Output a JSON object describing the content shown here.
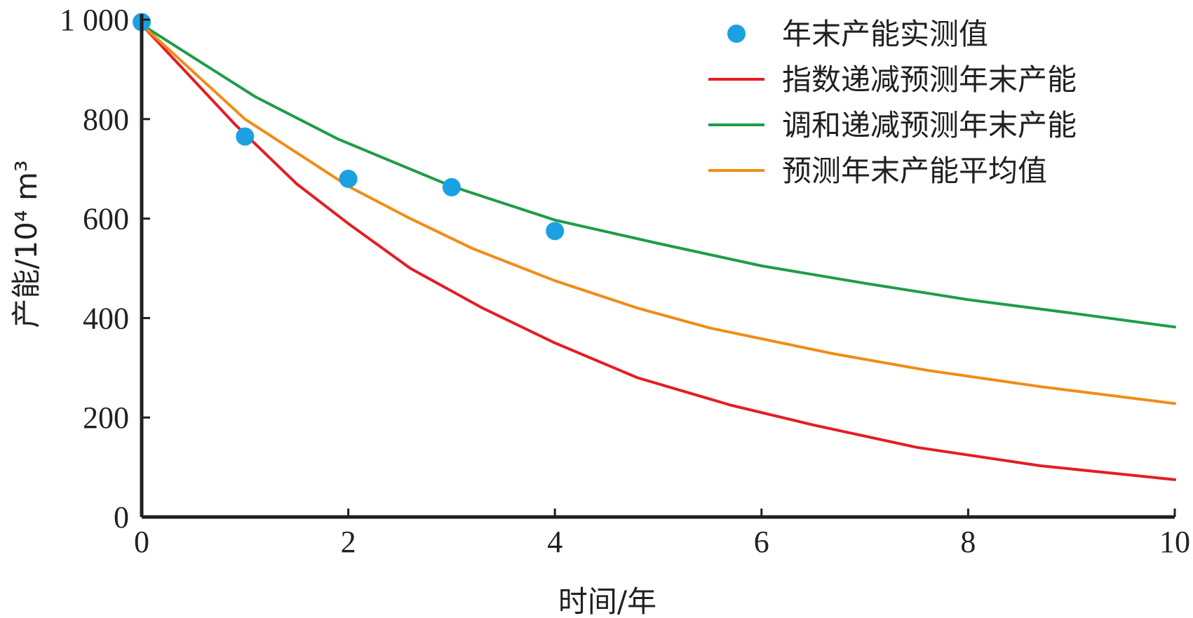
{
  "chart_data": {
    "type": "line",
    "xlabel": "时间/年",
    "ylabel": "产能/10⁴ m³",
    "xlim": [
      0,
      10
    ],
    "ylim": [
      0,
      1000
    ],
    "xticks": [
      "0",
      "2",
      "4",
      "6",
      "8",
      "10"
    ],
    "xtick_values": [
      0,
      2,
      4,
      6,
      8,
      10
    ],
    "yticks": [
      "0",
      "200",
      "400",
      "600",
      "800",
      "1 000"
    ],
    "ytick_values": [
      0,
      200,
      400,
      600,
      800,
      1000
    ],
    "grid": false,
    "legend_position": "top-right",
    "series": [
      {
        "name": "年末产能实测值",
        "kind": "scatter",
        "color": "#1ba1e2",
        "x": [
          0,
          1,
          2,
          3,
          4
        ],
        "y": [
          995,
          765,
          680,
          663,
          575
        ]
      },
      {
        "name": "指数递减预测年末产能",
        "kind": "line",
        "color": "#e31e24",
        "x": [
          0,
          0.9,
          1.5,
          2,
          2.6,
          3.3,
          4,
          4.8,
          5.7,
          6.5,
          7.5,
          8.7,
          10
        ],
        "y": [
          990,
          790,
          670,
          590,
          500,
          420,
          350,
          280,
          225,
          185,
          140,
          103,
          75
        ]
      },
      {
        "name": "调和递减预测年末产能",
        "kind": "line",
        "color": "#1f9c48",
        "x": [
          0,
          1.1,
          1.9,
          3,
          4,
          5,
          6,
          7,
          8,
          9,
          10
        ],
        "y": [
          990,
          845,
          760,
          665,
          597,
          550,
          505,
          470,
          437,
          410,
          382
        ]
      },
      {
        "name": "预测年末产能平均值",
        "kind": "line",
        "color": "#f18c17",
        "x": [
          0,
          1,
          2,
          2.6,
          3.2,
          4,
          4.8,
          5.5,
          6.7,
          7.6,
          8.7,
          10
        ],
        "y": [
          990,
          800,
          665,
          600,
          540,
          475,
          420,
          380,
          328,
          295,
          262,
          228
        ]
      }
    ]
  }
}
